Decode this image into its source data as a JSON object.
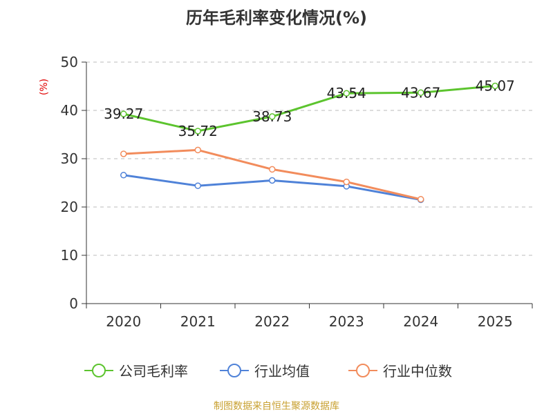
{
  "chart_data": {
    "type": "line",
    "title": "历年毛利率变化情况(%)",
    "ylabel": "(%)",
    "xlabel": "",
    "categories": [
      "2020",
      "2021",
      "2022",
      "2023",
      "2024",
      "2025"
    ],
    "ylim": [
      0,
      50
    ],
    "yticks": [
      0,
      10,
      20,
      30,
      40,
      50
    ],
    "grid": true,
    "legend_position": "bottom",
    "series": [
      {
        "name": "公司毛利率",
        "color": "#5cc42e",
        "values": [
          39.27,
          35.72,
          38.73,
          43.54,
          43.67,
          45.07
        ],
        "labels": [
          "39.27",
          "35.72",
          "38.73",
          "43.54",
          "43.67",
          "45.07"
        ]
      },
      {
        "name": "行业均值",
        "color": "#4f82d8",
        "values": [
          26.6,
          24.4,
          25.5,
          24.3,
          21.5,
          null
        ]
      },
      {
        "name": "行业中位数",
        "color": "#f28c5c",
        "values": [
          31.0,
          31.8,
          27.8,
          25.2,
          21.6,
          null
        ]
      }
    ]
  },
  "source": "制图数据来自恒生聚源数据库"
}
